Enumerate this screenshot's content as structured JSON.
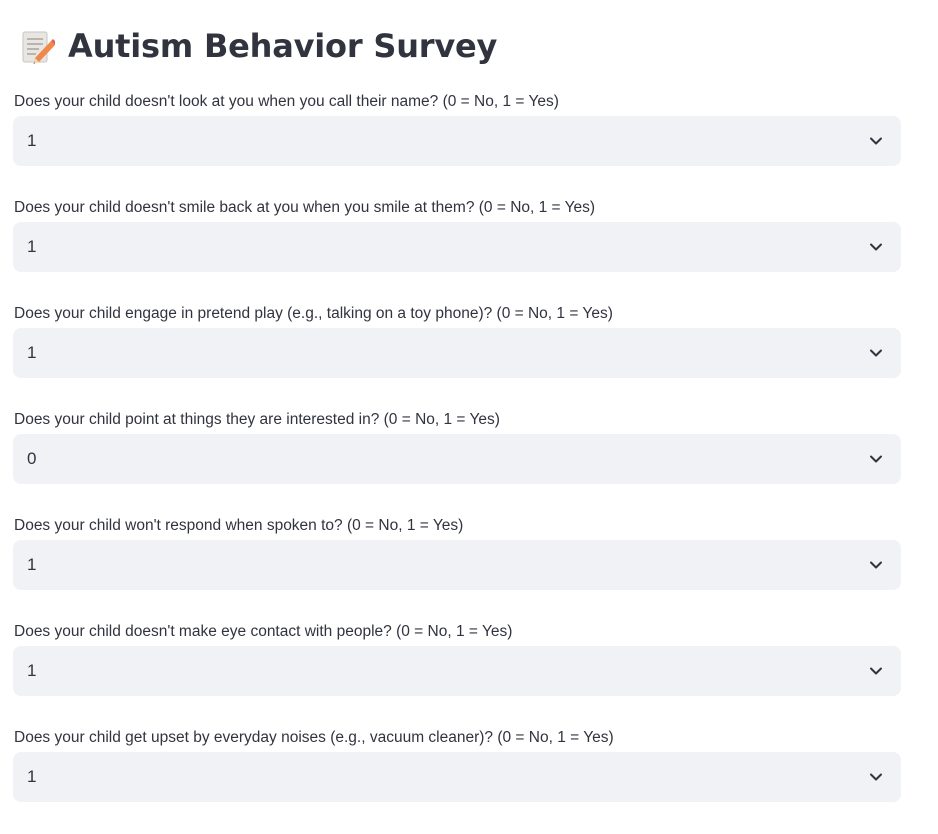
{
  "header": {
    "title": "Autism Behavior Survey",
    "title_icon": "memo-pencil-icon"
  },
  "colors": {
    "text": "#31333f",
    "select_bg": "#f0f2f6",
    "background": "#ffffff"
  },
  "questions": [
    {
      "label": "Does your child doesn't look at you when you call their name? (0 = No, 1 = Yes)",
      "value": "1"
    },
    {
      "label": "Does your child doesn't smile back at you when you smile at them? (0 = No, 1 = Yes)",
      "value": "1"
    },
    {
      "label": "Does your child engage in pretend play (e.g., talking on a toy phone)? (0 = No, 1 = Yes)",
      "value": "1"
    },
    {
      "label": "Does your child point at things they are interested in? (0 = No, 1 = Yes)",
      "value": "0"
    },
    {
      "label": "Does your child won't respond when spoken to? (0 = No, 1 = Yes)",
      "value": "1"
    },
    {
      "label": "Does your child doesn't make eye contact with people? (0 = No, 1 = Yes)",
      "value": "1"
    },
    {
      "label": "Does your child get upset by everyday noises (e.g., vacuum cleaner)? (0 = No, 1 = Yes)",
      "value": "1"
    }
  ]
}
